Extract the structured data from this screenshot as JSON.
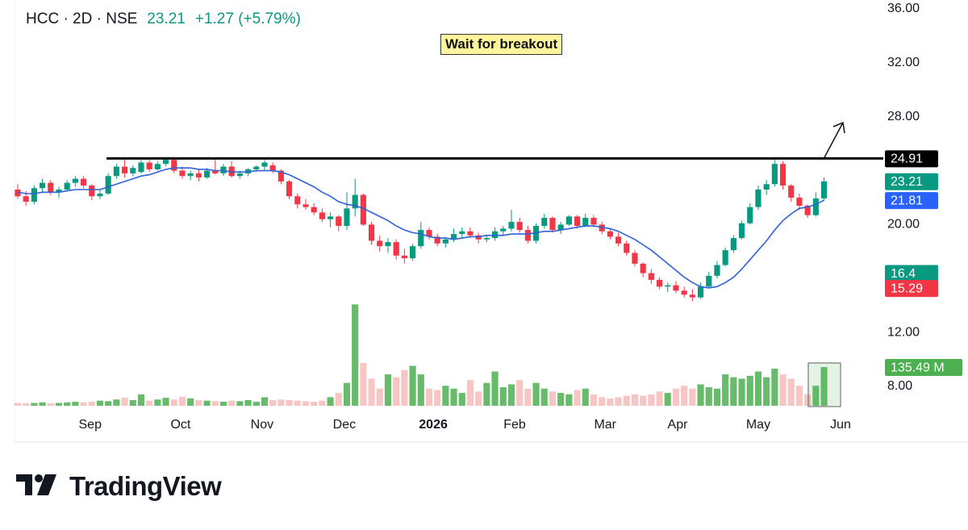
{
  "header": {
    "symbol": "HCC · 2D · NSE",
    "price": "23.21",
    "change": "+1.27 (+5.79%)"
  },
  "annotation": "Wait for breakout",
  "brand": "TradingView",
  "chart_data": {
    "type": "candlestick",
    "up_color": "#089981",
    "down_color": "#f23645",
    "ma_color": "#2f62d8",
    "xlim": [
      -0.39,
      105.2
    ],
    "ylim": [
      6.44,
      36.66
    ],
    "vlim": [
      0,
      1421
    ],
    "yticks": [
      {
        "value": 8,
        "label": "8.00"
      },
      {
        "value": 12,
        "label": "12.00"
      },
      {
        "value": 20,
        "label": "20.00"
      },
      {
        "value": 28,
        "label": "28.00"
      },
      {
        "value": 32,
        "label": "32.00"
      },
      {
        "value": 36,
        "label": "36.00"
      }
    ],
    "xticks": [
      {
        "value": 8.8,
        "label": "Sep"
      },
      {
        "value": 19.8,
        "label": "Oct"
      },
      {
        "value": 29.7,
        "label": "Nov"
      },
      {
        "value": 39.7,
        "label": "Dec"
      },
      {
        "value": 50.5,
        "label": "2026",
        "bold": true
      },
      {
        "value": 60.4,
        "label": "Feb"
      },
      {
        "value": 71.4,
        "label": "Mar"
      },
      {
        "value": 80.2,
        "label": "Apr"
      },
      {
        "value": 90,
        "label": "May"
      },
      {
        "value": 100,
        "label": "Jun"
      }
    ],
    "open": [
      22.6,
      22.1,
      21.7,
      22.7,
      23.1,
      22.4,
      22.6,
      23.1,
      23.4,
      22.9,
      22.1,
      22.3,
      23.6,
      24.3,
      23.8,
      23.9,
      24.6,
      24.1,
      24.5,
      24.8,
      24.0,
      23.6,
      23.8,
      23.5,
      24.0,
      23.8,
      24.3,
      23.6,
      23.8,
      24.1,
      24.3,
      24.4,
      24.0,
      23.2,
      22.1,
      21.5,
      21.3,
      20.9,
      20.4,
      20.6,
      19.9,
      21.2,
      22.2,
      20.0,
      18.8,
      18.4,
      18.7,
      17.7,
      17.5,
      18.4,
      19.6,
      19.1,
      18.6,
      18.9,
      19.3,
      19.5,
      19.2,
      18.9,
      19.0,
      19.5,
      19.7,
      20.2,
      19.6,
      18.8,
      19.9,
      20.5,
      19.6,
      20.0,
      20.6,
      19.9,
      20.5,
      20.0,
      19.5,
      19.1,
      18.6,
      17.9,
      17.1,
      16.4,
      15.9,
      15.4,
      15.5,
      15.1,
      14.8,
      14.6,
      15.4,
      16.2,
      17.0,
      18.1,
      19.0,
      20.1,
      21.3,
      22.6,
      23.0,
      24.5,
      22.9,
      22.0,
      21.4,
      20.7,
      21.94
    ],
    "high": [
      23.0,
      22.5,
      22.9,
      23.4,
      23.3,
      22.8,
      23.3,
      23.6,
      23.6,
      23.0,
      22.6,
      23.8,
      24.5,
      24.9,
      24.4,
      24.8,
      24.8,
      24.7,
      25.0,
      25.0,
      24.3,
      24.0,
      24.1,
      24.2,
      24.8,
      24.5,
      24.7,
      24.0,
      24.2,
      24.4,
      24.8,
      24.6,
      24.1,
      23.3,
      22.3,
      21.9,
      21.6,
      21.2,
      20.9,
      20.7,
      22.4,
      23.4,
      22.3,
      20.2,
      19.2,
      19.0,
      18.9,
      18.2,
      18.6,
      20.2,
      19.8,
      19.3,
      19.1,
      19.7,
      19.8,
      19.8,
      19.4,
      19.2,
      19.8,
      19.9,
      21.1,
      20.5,
      19.9,
      20.1,
      20.8,
      20.6,
      20.2,
      20.7,
      20.7,
      20.8,
      20.7,
      20.2,
      19.7,
      19.4,
      18.8,
      18.1,
      17.2,
      16.7,
      16.1,
      15.7,
      15.8,
      15.4,
      15.2,
      15.7,
      16.5,
      17.3,
      18.3,
      19.2,
      20.3,
      21.6,
      22.9,
      23.3,
      24.8,
      24.7,
      23.0,
      22.3,
      21.5,
      22.4,
      23.5
    ],
    "low": [
      21.9,
      21.4,
      21.5,
      22.4,
      22.2,
      22.0,
      22.5,
      22.8,
      22.7,
      21.8,
      21.9,
      22.2,
      23.4,
      23.5,
      23.6,
      23.8,
      23.9,
      24.0,
      24.3,
      23.8,
      23.4,
      23.3,
      23.2,
      23.4,
      23.7,
      23.6,
      23.5,
      23.4,
      23.6,
      23.9,
      24.0,
      23.8,
      23.0,
      21.9,
      21.2,
      21.1,
      20.7,
      20.2,
      19.8,
      19.5,
      19.6,
      20.6,
      19.9,
      18.5,
      18.0,
      17.9,
      17.4,
      17.1,
      17.3,
      18.2,
      18.9,
      18.4,
      18.3,
      18.7,
      19.0,
      19.0,
      18.6,
      18.7,
      18.8,
      19.2,
      19.5,
      19.4,
      18.6,
      18.6,
      19.7,
      19.4,
      19.3,
      19.9,
      19.7,
      19.8,
      19.8,
      19.3,
      18.9,
      18.4,
      17.7,
      16.9,
      16.1,
      15.6,
      15.2,
      15.0,
      14.9,
      14.6,
      14.3,
      14.5,
      15.3,
      16.0,
      16.9,
      17.9,
      18.9,
      20.0,
      21.1,
      22.2,
      22.8,
      22.6,
      21.7,
      21.1,
      20.5,
      20.6,
      21.8
    ],
    "close": [
      22.1,
      21.7,
      22.7,
      23.1,
      22.4,
      22.6,
      23.1,
      23.4,
      22.9,
      22.1,
      22.3,
      23.6,
      24.3,
      23.8,
      24.2,
      24.6,
      24.1,
      24.5,
      24.8,
      24.0,
      23.6,
      23.8,
      23.5,
      24.0,
      23.8,
      24.3,
      23.6,
      23.8,
      24.1,
      24.3,
      24.6,
      24.0,
      23.2,
      22.1,
      21.5,
      21.3,
      20.9,
      20.4,
      20.6,
      19.9,
      21.2,
      22.2,
      20.0,
      18.8,
      18.4,
      18.7,
      17.7,
      17.5,
      18.4,
      19.6,
      19.1,
      18.6,
      18.9,
      19.3,
      19.5,
      19.2,
      18.9,
      19.0,
      19.5,
      19.7,
      20.2,
      19.6,
      18.8,
      19.9,
      20.5,
      19.6,
      20.0,
      20.6,
      19.9,
      20.5,
      20.0,
      19.5,
      19.1,
      18.6,
      17.9,
      17.1,
      16.4,
      15.9,
      15.4,
      15.5,
      15.1,
      14.8,
      14.6,
      15.4,
      16.2,
      17.0,
      18.1,
      19.0,
      20.1,
      21.3,
      22.6,
      23.0,
      24.5,
      22.9,
      22.0,
      21.4,
      20.7,
      21.94,
      23.21
    ],
    "volume": [
      10,
      8,
      10,
      12,
      9,
      10,
      12,
      14,
      12,
      14,
      18,
      16,
      22,
      28,
      20,
      40,
      18,
      22,
      28,
      22,
      32,
      26,
      20,
      18,
      16,
      14,
      18,
      16,
      20,
      14,
      30,
      20,
      22,
      20,
      18,
      16,
      14,
      18,
      30,
      45,
      80,
      355,
      150,
      95,
      60,
      110,
      100,
      125,
      140,
      110,
      60,
      55,
      70,
      60,
      45,
      90,
      50,
      80,
      120,
      65,
      75,
      90,
      60,
      80,
      60,
      50,
      45,
      40,
      55,
      60,
      40,
      30,
      25,
      30,
      35,
      40,
      35,
      40,
      50,
      45,
      60,
      70,
      60,
      75,
      65,
      60,
      110,
      100,
      95,
      105,
      120,
      100,
      130,
      110,
      95,
      70,
      40,
      70,
      135.49
    ],
    "ma": [
      22.4,
      22.3,
      22.3,
      22.4,
      22.4,
      22.4,
      22.5,
      22.6,
      22.6,
      22.6,
      22.6,
      22.8,
      23.0,
      23.2,
      23.4,
      23.6,
      23.7,
      23.9,
      24.1,
      24.2,
      24.2,
      24.2,
      24.1,
      24.1,
      24.0,
      24.0,
      23.9,
      23.9,
      23.9,
      24.0,
      24.0,
      24.0,
      23.9,
      23.7,
      23.4,
      23.1,
      22.8,
      22.4,
      22.1,
      21.7,
      21.5,
      21.4,
      21.2,
      20.9,
      20.6,
      20.3,
      19.9,
      19.6,
      19.4,
      19.3,
      19.1,
      19.0,
      19.0,
      18.9,
      19.0,
      19.1,
      19.1,
      19.2,
      19.2,
      19.2,
      19.3,
      19.3,
      19.3,
      19.4,
      19.5,
      19.5,
      19.6,
      19.7,
      19.8,
      19.9,
      19.9,
      19.8,
      19.7,
      19.5,
      19.2,
      18.9,
      18.5,
      18.1,
      17.6,
      17.1,
      16.6,
      16.1,
      15.7,
      15.4,
      15.3,
      15.4,
      15.7,
      16.1,
      16.7,
      17.4,
      18.1,
      18.8,
      19.6,
      20.3,
      20.8,
      21.2,
      21.3,
      21.5,
      21.81
    ],
    "resistance": {
      "value": 24.91,
      "from": 10.8
    },
    "price_labels": [
      {
        "value": 24.91,
        "color": "#000000"
      },
      {
        "value": 23.21,
        "color": "#089981"
      },
      {
        "value": 21.81,
        "color": "#2962ff"
      },
      {
        "value": 16.4,
        "color": "#089981"
      },
      {
        "value": 15.29,
        "color": "#f23645"
      }
    ],
    "volume_label": {
      "value": 135.49,
      "label": "135.49 M",
      "color": "#4caf50"
    }
  }
}
